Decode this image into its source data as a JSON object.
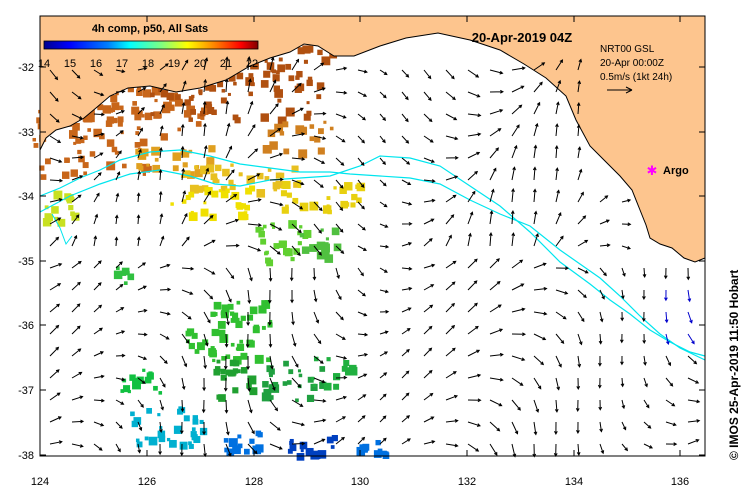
{
  "title": "20-Apr-2019 04Z",
  "colorbar": {
    "title": "4h comp, p50, All Sats",
    "min": 14,
    "max": 22,
    "ticks": [
      "14",
      "15",
      "16",
      "17",
      "18",
      "19",
      "20",
      "21",
      "22"
    ],
    "colors": [
      "#00008f",
      "#0000ff",
      "#0080ff",
      "#00ffff",
      "#80ff80",
      "#ffff00",
      "#ff8000",
      "#ff0000",
      "#800000"
    ]
  },
  "info": {
    "line1": "NRT00 GSL",
    "line2": "20-Apr 00:00Z",
    "line3": "0.5m/s (1kt 24h)"
  },
  "argo_label": "Argo",
  "credit": "© IMOS 25-Apr-2019 11:50 Hobart",
  "axes": {
    "lon_ticks": [
      "124",
      "126",
      "128",
      "130",
      "132",
      "134",
      "136"
    ],
    "lat_ticks": [
      "-32",
      "-33",
      "-34",
      "-35",
      "-36",
      "-37",
      "-38"
    ]
  },
  "colors": {
    "land": "#fdc58e",
    "current_contour": "#00e5ee",
    "argo": "#ff00ff"
  }
}
